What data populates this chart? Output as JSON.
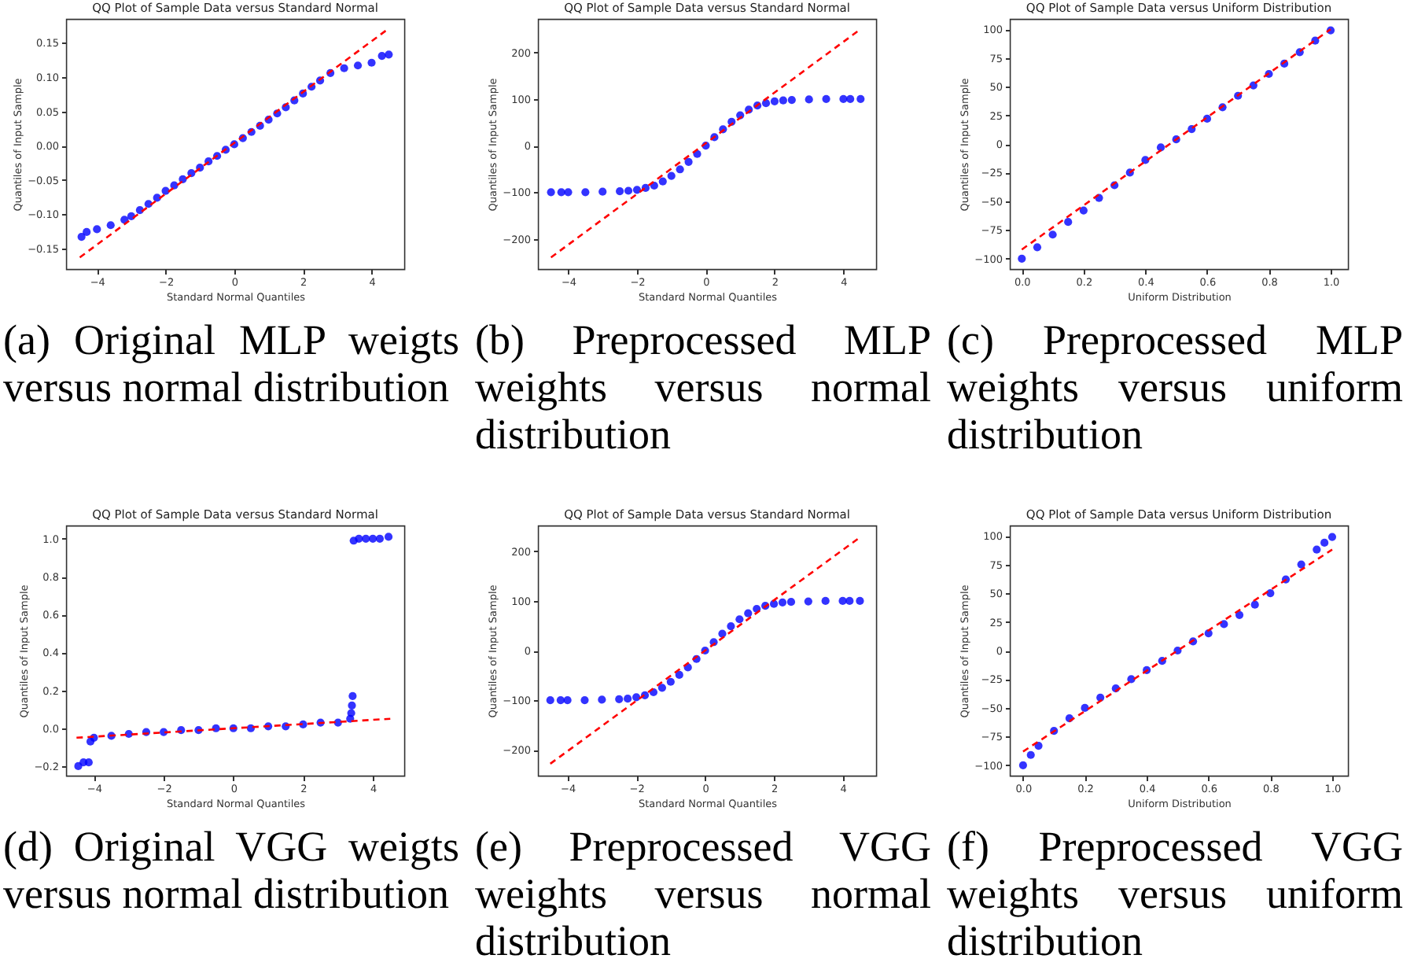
{
  "chart_data": [
    {
      "type": "scatter",
      "title": "QQ Plot of Sample Data versus Standard Normal",
      "xlabel": "Standard Normal Quantiles",
      "ylabel": "Quantiles of Input Sample",
      "xlim": [
        -4.9,
        4.95
      ],
      "ylim": [
        -0.18,
        0.185
      ],
      "xticks": [
        -4,
        -2,
        0,
        2,
        4
      ],
      "yticks": [
        {
          "value": -0.15,
          "label": "−0.15"
        },
        {
          "value": -0.1,
          "label": "−0.10"
        },
        {
          "value": -0.05,
          "label": "−0.05"
        },
        {
          "value": 0,
          "label": "0.00"
        },
        {
          "value": 0.05,
          "label": "0.05"
        },
        {
          "value": 0.1,
          "label": "0.10"
        },
        {
          "value": 0.15,
          "label": "0.15"
        }
      ],
      "marker": "circle",
      "annotations": [
        "(a) Original MLP weigts versus normal distribution"
      ],
      "series": [
        {
          "type": "scatter",
          "color": "#0000ff",
          "x": [
            -4.45,
            -4.3,
            -4,
            -3.6,
            -3.2,
            -3,
            -2.75,
            -2.5,
            -2.25,
            -2,
            -1.75,
            -1.5,
            -1.25,
            -1,
            -0.75,
            -0.5,
            -0.25,
            0,
            0.25,
            0.5,
            0.75,
            1,
            1.25,
            1.5,
            1.75,
            2,
            2.25,
            2.5,
            2.8,
            3.2,
            3.6,
            4,
            4.3,
            4.5
          ],
          "values": [
            -0.133,
            -0.126,
            -0.122,
            -0.116,
            -0.108,
            -0.103,
            -0.094,
            -0.085,
            -0.076,
            -0.066,
            -0.058,
            -0.049,
            -0.04,
            -0.032,
            -0.023,
            -0.015,
            -0.006,
            0.002,
            0.011,
            0.02,
            0.029,
            0.038,
            0.047,
            0.056,
            0.066,
            0.076,
            0.086,
            0.095,
            0.106,
            0.113,
            0.117,
            0.121,
            0.131,
            0.133
          ]
        },
        {
          "type": "line",
          "color": "#ff0000",
          "line_style": "dashed",
          "marker": "none",
          "x": [
            -4.5,
            4.5
          ],
          "values": [
            -0.163,
            0.171
          ]
        }
      ]
    },
    {
      "type": "scatter",
      "title": "QQ Plot of Sample Data versus Standard Normal",
      "xlabel": "Standard Normal Quantiles",
      "ylabel": "Quantiles of Input Sample",
      "xlim": [
        -4.88,
        4.95
      ],
      "ylim": [
        -265,
        272
      ],
      "xticks": [
        -4,
        -2,
        0,
        2,
        4
      ],
      "yticks": [
        -200,
        -100,
        0,
        100,
        200
      ],
      "marker": "circle",
      "annotations": [
        "(b) Preprocessed MLP weights versus normal distribution"
      ],
      "series": [
        {
          "type": "scatter",
          "color": "#0000ff",
          "x": [
            -4.5,
            -4.2,
            -4,
            -3.5,
            -3,
            -2.5,
            -2.25,
            -2,
            -1.75,
            -1.5,
            -1.25,
            -1,
            -0.75,
            -0.5,
            -0.25,
            0,
            0.25,
            0.5,
            0.75,
            1,
            1.25,
            1.5,
            1.75,
            2,
            2.25,
            2.5,
            3,
            3.5,
            4,
            4.2,
            4.5
          ],
          "values": [
            -100,
            -100,
            -100,
            -100,
            -99,
            -98,
            -97,
            -95,
            -91,
            -86,
            -77,
            -65,
            -51,
            -35,
            -18,
            0,
            18,
            35,
            51,
            65,
            77,
            86,
            91,
            95,
            97,
            98,
            99,
            100,
            100,
            100,
            100
          ]
        },
        {
          "type": "line",
          "color": "#ff0000",
          "line_style": "dashed",
          "marker": "none",
          "x": [
            -4.5,
            4.5
          ],
          "values": [
            -240,
            250
          ]
        }
      ]
    },
    {
      "type": "scatter",
      "title": "QQ Plot of Sample Data versus Uniform Distribution",
      "xlabel": "Uniform Distribution",
      "ylabel": "Quantiles of Input Sample",
      "xlim": [
        -0.039,
        1.056
      ],
      "ylim": [
        -109,
        109
      ],
      "xticks": [
        {
          "value": 0,
          "label": "0.0"
        },
        {
          "value": 0.2,
          "label": "0.2"
        },
        {
          "value": 0.4,
          "label": "0.4"
        },
        {
          "value": 0.6,
          "label": "0.6"
        },
        {
          "value": 0.8,
          "label": "0.8"
        },
        {
          "value": 1,
          "label": "1.0"
        }
      ],
      "yticks": [
        {
          "value": -100,
          "label": "−100"
        },
        {
          "value": -75,
          "label": "−75"
        },
        {
          "value": -50,
          "label": "−50"
        },
        {
          "value": -25,
          "label": "−25"
        },
        0,
        25,
        50,
        75,
        100
      ],
      "marker": "circle",
      "annotations": [
        "(c) Preprocessed MLP weights versus uniform distribution"
      ],
      "series": [
        {
          "type": "scatter",
          "color": "#0000ff",
          "x": [
            0,
            0.05,
            0.1,
            0.15,
            0.2,
            0.25,
            0.3,
            0.35,
            0.4,
            0.45,
            0.5,
            0.55,
            0.6,
            0.65,
            0.7,
            0.75,
            0.8,
            0.85,
            0.9,
            0.95,
            1
          ],
          "values": [
            -100,
            -90,
            -79,
            -68,
            -58,
            -47,
            -36,
            -25,
            -14,
            -3,
            4,
            13,
            22,
            32,
            42,
            51,
            61,
            70,
            80,
            90,
            99
          ]
        },
        {
          "type": "line",
          "color": "#ff0000",
          "line_style": "dashed",
          "marker": "none",
          "x": [
            0,
            1
          ],
          "values": [
            -92,
            100
          ]
        }
      ]
    },
    {
      "type": "scatter",
      "title": "QQ Plot of Sample Data versus Standard Normal",
      "xlabel": "Standard Normal Quantiles",
      "ylabel": "Quantiles of Input Sample",
      "xlim": [
        -4.8,
        4.9
      ],
      "ylim": [
        -0.25,
        1.07
      ],
      "xticks": [
        -4,
        -2,
        0,
        2,
        4
      ],
      "yticks": [
        {
          "value": -0.2,
          "label": "−0.2"
        },
        {
          "value": 0,
          "label": "0.0"
        },
        {
          "value": 0.2,
          "label": "0.2"
        },
        {
          "value": 0.4,
          "label": "0.4"
        },
        {
          "value": 0.6,
          "label": "0.6"
        },
        {
          "value": 0.8,
          "label": "0.8"
        },
        {
          "value": 1,
          "label": "1.0"
        }
      ],
      "marker": "circle",
      "annotations": [
        "(d) Original VGG weigts versus normal distribution"
      ],
      "series": [
        {
          "type": "scatter",
          "color": "#0000ff",
          "x": [
            -4.45,
            -4.3,
            -4.15,
            -4.1,
            -4,
            -3.5,
            -3,
            -2.5,
            -2,
            -1.5,
            -1,
            -0.5,
            0,
            0.5,
            1,
            1.5,
            2,
            2.5,
            3,
            3.35,
            3.38,
            3.4,
            3.42,
            3.45,
            3.6,
            3.8,
            4,
            4.2,
            4.45
          ],
          "values": [
            -0.2,
            -0.18,
            -0.18,
            -0.07,
            -0.05,
            -0.04,
            -0.03,
            -0.02,
            -0.02,
            -0.01,
            -0.01,
            0,
            0,
            0,
            0.01,
            0.01,
            0.02,
            0.03,
            0.03,
            0.05,
            0.08,
            0.12,
            0.17,
            0.99,
            1,
            1,
            1,
            1,
            1.01
          ]
        },
        {
          "type": "line",
          "color": "#ff0000",
          "line_style": "dashed",
          "marker": "none",
          "x": [
            -4.5,
            4.5
          ],
          "values": [
            -0.05,
            0.05
          ]
        }
      ]
    },
    {
      "type": "scatter",
      "title": "QQ Plot of Sample Data versus Standard Normal",
      "xlabel": "Standard Normal Quantiles",
      "ylabel": "Quantiles of Input Sample",
      "xlim": [
        -4.86,
        4.97
      ],
      "ylim": [
        -252,
        252
      ],
      "xticks": [
        -4,
        -2,
        0,
        2,
        4
      ],
      "yticks": [
        -200,
        -100,
        0,
        100,
        200
      ],
      "marker": "circle",
      "annotations": [
        "(e) Preprocessed VGG weights versus normal distribution"
      ],
      "series": [
        {
          "type": "scatter",
          "color": "#0000ff",
          "x": [
            -4.5,
            -4.2,
            -4,
            -3.5,
            -3,
            -2.5,
            -2.25,
            -2,
            -1.75,
            -1.5,
            -1.25,
            -1,
            -0.75,
            -0.5,
            -0.25,
            0,
            0.25,
            0.5,
            0.75,
            1,
            1.25,
            1.5,
            1.75,
            2,
            2.25,
            2.5,
            3,
            3.5,
            4,
            4.2,
            4.5
          ],
          "values": [
            -100,
            -100,
            -100,
            -100,
            -99,
            -98,
            -97,
            -94,
            -90,
            -84,
            -75,
            -63,
            -49,
            -34,
            -17,
            0,
            17,
            34,
            49,
            63,
            75,
            84,
            90,
            94,
            97,
            98,
            99,
            100,
            100,
            100,
            100
          ]
        },
        {
          "type": "line",
          "color": "#ff0000",
          "line_style": "dashed",
          "marker": "none",
          "x": [
            -4.5,
            4.5
          ],
          "values": [
            -228,
            228
          ]
        }
      ]
    },
    {
      "type": "scatter",
      "title": "QQ Plot of Sample Data versus Uniform Distribution",
      "xlabel": "Uniform Distribution",
      "ylabel": "Quantiles of Input Sample",
      "xlim": [
        -0.043,
        1.051
      ],
      "ylim": [
        -109,
        109
      ],
      "xticks": [
        {
          "value": 0,
          "label": "0.0"
        },
        {
          "value": 0.2,
          "label": "0.2"
        },
        {
          "value": 0.4,
          "label": "0.4"
        },
        {
          "value": 0.6,
          "label": "0.6"
        },
        {
          "value": 0.8,
          "label": "0.8"
        },
        {
          "value": 1,
          "label": "1.0"
        }
      ],
      "yticks": [
        {
          "value": -100,
          "label": "−100"
        },
        {
          "value": -75,
          "label": "−75"
        },
        {
          "value": -50,
          "label": "−50"
        },
        {
          "value": -25,
          "label": "−25"
        },
        0,
        25,
        50,
        75,
        100
      ],
      "marker": "circle",
      "annotations": [
        "(f) Preprocessed VGG weights versus uniform distribution"
      ],
      "series": [
        {
          "type": "scatter",
          "color": "#0000ff",
          "x": [
            0,
            0.025,
            0.05,
            0.1,
            0.15,
            0.2,
            0.25,
            0.3,
            0.35,
            0.4,
            0.45,
            0.5,
            0.55,
            0.6,
            0.65,
            0.7,
            0.75,
            0.8,
            0.85,
            0.9,
            0.95,
            0.975,
            1
          ],
          "values": [
            -100,
            -91,
            -83,
            -70,
            -59,
            -50,
            -41,
            -33,
            -25,
            -17,
            -9,
            0,
            8,
            15,
            23,
            31,
            40,
            50,
            62,
            75,
            88,
            94,
            99
          ]
        },
        {
          "type": "line",
          "color": "#ff0000",
          "line_style": "dashed",
          "marker": "none",
          "x": [
            0,
            1
          ],
          "values": [
            -88,
            88
          ]
        }
      ]
    }
  ]
}
